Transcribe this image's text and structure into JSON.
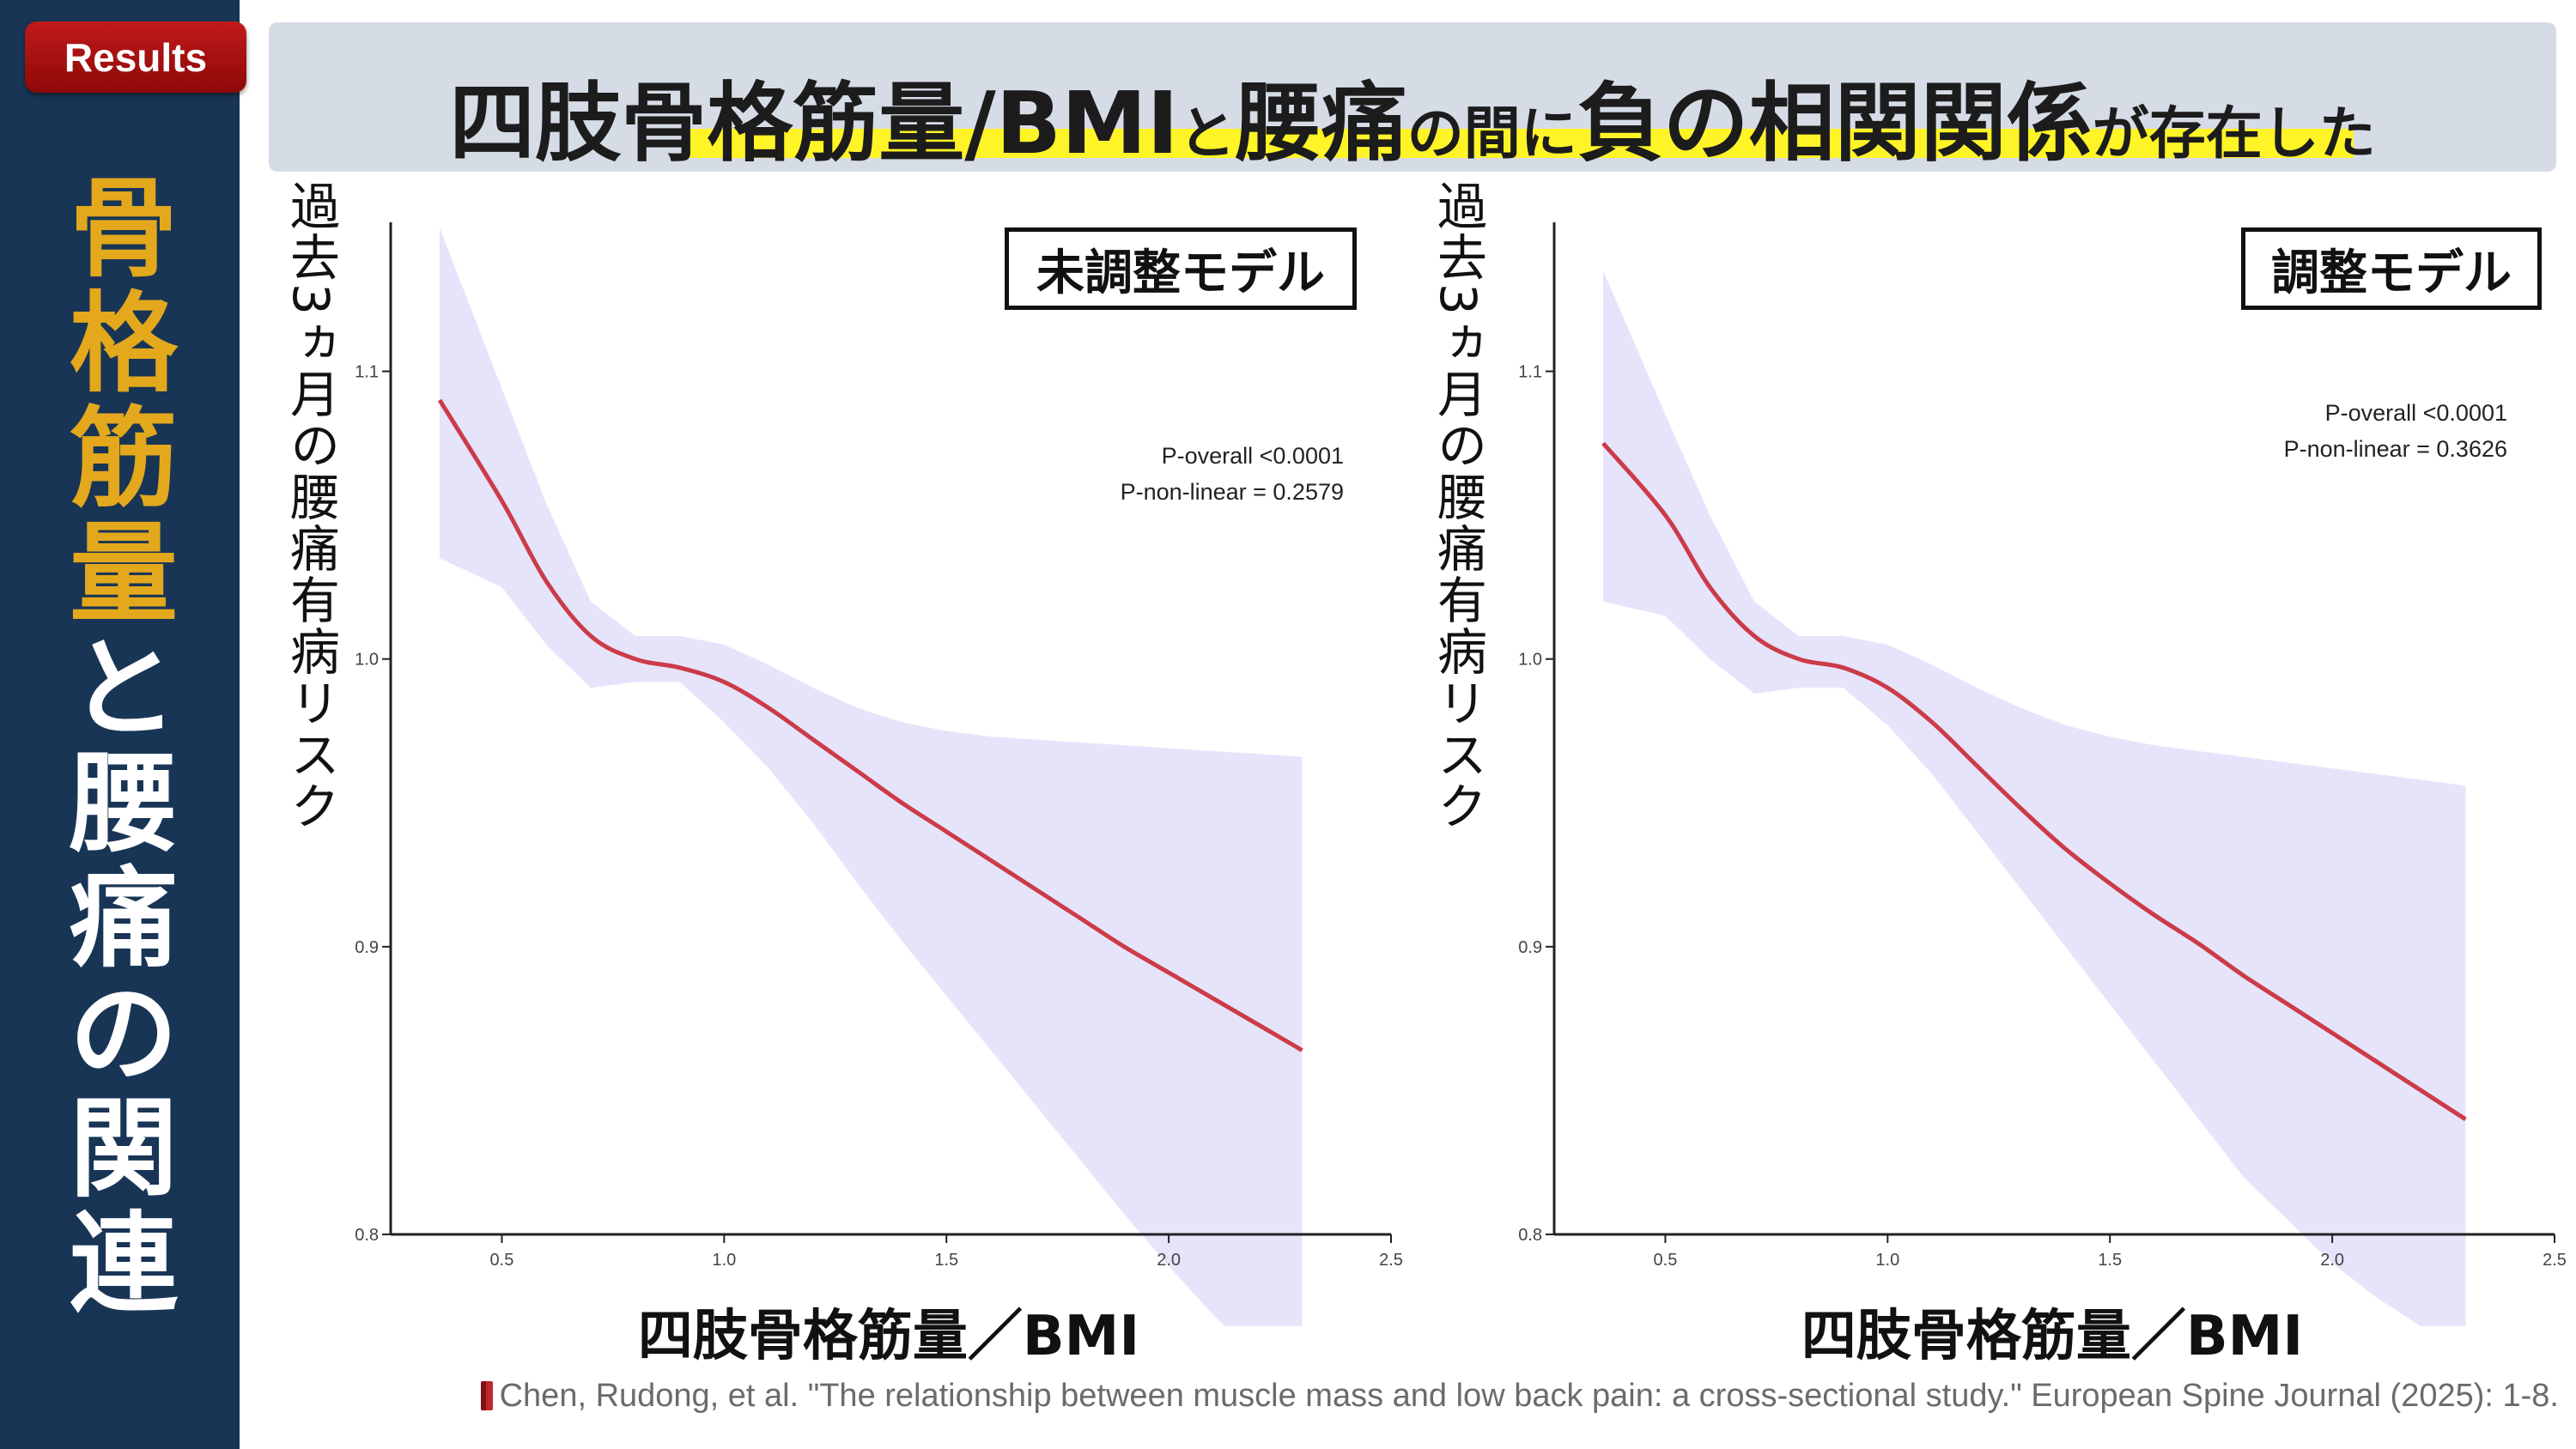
{
  "badge": {
    "label": "Results"
  },
  "sidebar_title": {
    "gold_chars": [
      "骨",
      "格",
      "筋",
      "量"
    ],
    "white_chars": [
      "と",
      "腰",
      "痛",
      "の",
      "関",
      "連"
    ]
  },
  "headline": {
    "part1": "四肢骨格筋量/BMI",
    "part2": "と",
    "part3": "腰痛",
    "part4": "の間に",
    "part5": "負の相関関係",
    "part6": "が存在した"
  },
  "colors": {
    "sidebar": "#183556",
    "gold": "#e3a81c",
    "badge_red": "#b01414",
    "banner": "#d6dce6",
    "highlight": "#fff427",
    "curve": "#cc3b48",
    "ribbon": "#e5e4fb"
  },
  "chart_data": [
    {
      "type": "line",
      "title": "未調整モデル",
      "xlabel": "四肢骨格筋量／BMI",
      "ylabel": "過去3ヵ月の腰痛有病リスク",
      "xlim": [
        0.25,
        2.5
      ],
      "ylim": [
        0.8,
        1.15
      ],
      "xticks": [
        "0.5",
        "1.0",
        "1.5",
        "2.0",
        "2.5"
      ],
      "yticks": [
        "0.8",
        "0.9",
        "1.0",
        "1.1"
      ],
      "annotations": [
        "P-overall <0.0001",
        "P-non-linear = 0.2579"
      ],
      "x": [
        0.36,
        0.5,
        0.6,
        0.7,
        0.8,
        0.9,
        1.0,
        1.1,
        1.2,
        1.3,
        1.4,
        1.5,
        1.6,
        1.7,
        1.8,
        1.9,
        2.0,
        2.1,
        2.2,
        2.3
      ],
      "series": [
        {
          "values": [
            1.09,
            1.055,
            1.027,
            1.008,
            1.0,
            0.997,
            0.992,
            0.983,
            0.972,
            0.961,
            0.95,
            0.94,
            0.93,
            0.92,
            0.91,
            0.9,
            0.891,
            0.882,
            0.873,
            0.864
          ],
          "lower": [
            1.035,
            1.025,
            1.005,
            0.99,
            0.992,
            0.992,
            0.978,
            0.962,
            0.943,
            0.922,
            0.902,
            0.883,
            0.864,
            0.845,
            0.826,
            0.807,
            0.789,
            0.772,
            0.757,
            0.744
          ],
          "upper": [
            1.15,
            1.094,
            1.054,
            1.02,
            1.008,
            1.008,
            1.005,
            0.998,
            0.99,
            0.983,
            0.978,
            0.975,
            0.973,
            0.972,
            0.971,
            0.97,
            0.969,
            0.968,
            0.967,
            0.966
          ]
        }
      ]
    },
    {
      "type": "line",
      "title": "調整モデル",
      "xlabel": "四肢骨格筋量／BMI",
      "ylabel": "過去3ヵ月の腰痛有病リスク",
      "xlim": [
        0.25,
        2.5
      ],
      "ylim": [
        0.8,
        1.15
      ],
      "xticks": [
        "0.5",
        "1.0",
        "1.5",
        "2.0",
        "2.5"
      ],
      "yticks": [
        "0.8",
        "0.9",
        "1.0",
        "1.1"
      ],
      "annotations": [
        "P-overall <0.0001",
        "P-non-linear = 0.3626"
      ],
      "x": [
        0.36,
        0.5,
        0.6,
        0.7,
        0.8,
        0.9,
        1.0,
        1.1,
        1.2,
        1.3,
        1.4,
        1.5,
        1.6,
        1.7,
        1.8,
        1.9,
        2.0,
        2.1,
        2.2,
        2.3
      ],
      "series": [
        {
          "values": [
            1.075,
            1.05,
            1.025,
            1.008,
            1.0,
            0.997,
            0.99,
            0.978,
            0.963,
            0.948,
            0.934,
            0.922,
            0.911,
            0.901,
            0.89,
            0.88,
            0.87,
            0.86,
            0.85,
            0.84
          ],
          "lower": [
            1.02,
            1.015,
            1.0,
            0.988,
            0.99,
            0.99,
            0.977,
            0.96,
            0.94,
            0.92,
            0.9,
            0.88,
            0.86,
            0.84,
            0.82,
            0.805,
            0.79,
            0.778,
            0.768,
            0.76
          ],
          "upper": [
            1.135,
            1.085,
            1.05,
            1.02,
            1.008,
            1.008,
            1.005,
            0.998,
            0.99,
            0.983,
            0.977,
            0.973,
            0.97,
            0.968,
            0.966,
            0.964,
            0.962,
            0.96,
            0.958,
            0.956
          ]
        }
      ]
    }
  ],
  "citation": {
    "icon": "book-icon",
    "text": "Chen, Rudong, et al. \"The relationship between muscle mass and low back pain: a cross-sectional study.\" European Spine Journal (2025): 1-8."
  }
}
